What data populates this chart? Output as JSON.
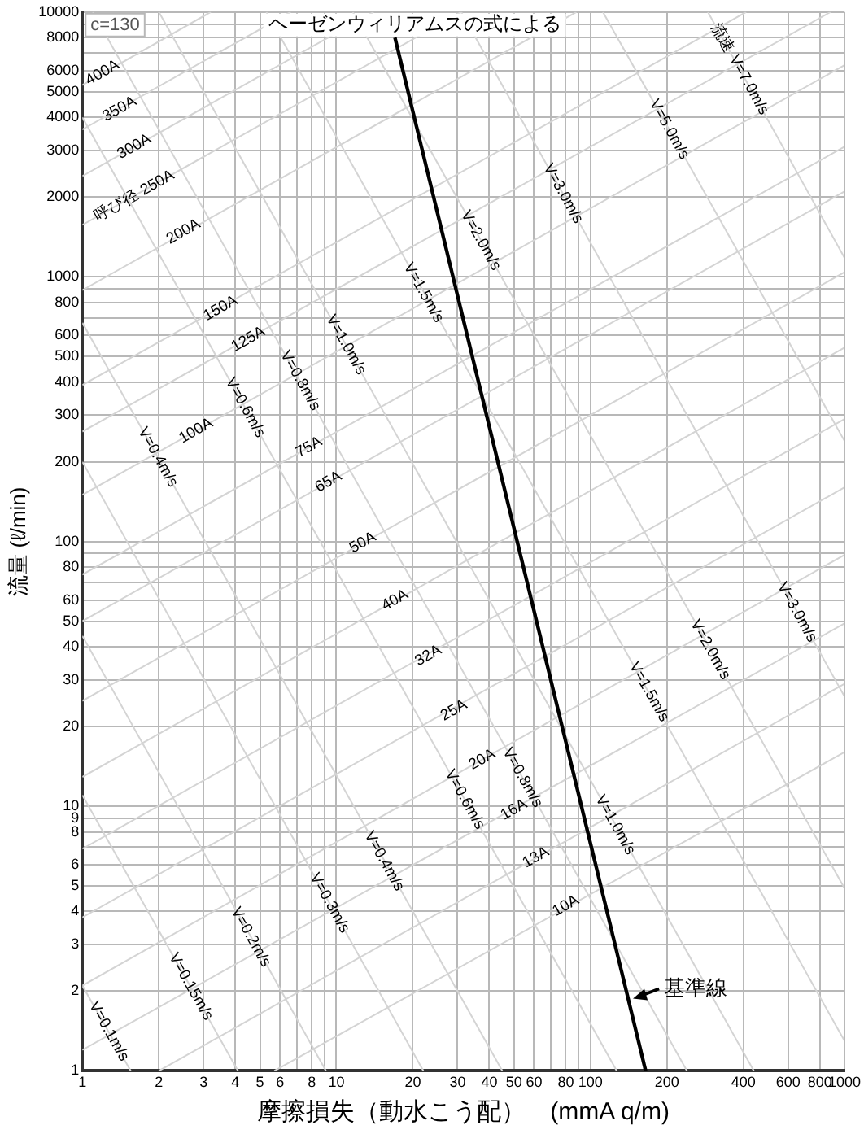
{
  "chart_data": {
    "type": "line",
    "title": "ヘーゼンウィリアムスの式による",
    "xlabel": "摩擦損失（動水こう配）　(mmA q/m)",
    "ylabel": "流量 (ℓ/min)",
    "log": "xy",
    "grid": true,
    "marker": "none",
    "xlim": [
      1,
      1000
    ],
    "ylim": [
      1,
      10000
    ],
    "xticks": [
      1,
      2,
      3,
      4,
      5,
      6,
      {
        "value": 7,
        "label": null
      },
      8,
      {
        "value": 9,
        "label": null
      },
      10,
      20,
      30,
      40,
      50,
      60,
      {
        "value": 70,
        "label": null
      },
      80,
      {
        "value": 90,
        "label": null
      },
      100,
      200,
      400,
      600,
      800,
      1000
    ],
    "yticks": [
      1,
      2,
      3,
      4,
      5,
      6,
      {
        "value": 7,
        "label": null
      },
      8,
      9,
      10,
      20,
      30,
      40,
      50,
      60,
      {
        "value": 70,
        "label": null
      },
      80,
      {
        "value": 90,
        "label": null
      },
      100,
      200,
      300,
      400,
      500,
      600,
      {
        "value": 700,
        "label": null
      },
      800,
      {
        "value": 900,
        "label": null
      },
      1000,
      2000,
      3000,
      4000,
      5000,
      6000,
      {
        "value": 7000,
        "label": null
      },
      8000,
      {
        "value": 9000,
        "label": null
      },
      10000
    ],
    "series": [
      {
        "name": "基準線",
        "color": "#000000",
        "x": [
          17,
          165
        ],
        "values": [
          8000,
          1
        ]
      },
      {
        "color": "#d4d4d4",
        "x": [
          1,
          3.2
        ],
        "values": [
          5300,
          10000
        ]
      },
      {
        "color": "#d4d4d4",
        "x": [
          1,
          6.6
        ],
        "values": [
          3600,
          10000
        ]
      },
      {
        "color": "#d4d4d4",
        "x": [
          1,
          14
        ],
        "values": [
          2400,
          10000
        ]
      },
      {
        "color": "#d4d4d4",
        "x": [
          1,
          31
        ],
        "values": [
          1570,
          10000
        ]
      },
      {
        "color": "#d4d4d4",
        "x": [
          1,
          88
        ],
        "values": [
          890,
          10000
        ]
      },
      {
        "color": "#d4d4d4",
        "x": [
          1,
          410
        ],
        "values": [
          390,
          10000
        ]
      },
      {
        "color": "#d4d4d4",
        "x": [
          1,
          880
        ],
        "values": [
          260,
          10000
        ]
      },
      {
        "color": "#d4d4d4",
        "x": [
          1,
          1000
        ],
        "values": [
          150,
          6300
        ]
      },
      {
        "color": "#d4d4d4",
        "x": [
          1,
          1000
        ],
        "values": [
          75,
          3100
        ]
      },
      {
        "color": "#d4d4d4",
        "x": [
          1,
          1000
        ],
        "values": [
          50,
          2100
        ]
      },
      {
        "color": "#d4d4d4",
        "x": [
          1,
          1000
        ],
        "values": [
          25,
          1040
        ]
      },
      {
        "color": "#d4d4d4",
        "x": [
          1,
          1000
        ],
        "values": [
          12.9,
          540
        ]
      },
      {
        "color": "#d4d4d4",
        "x": [
          1,
          1000
        ],
        "values": [
          6.9,
          290
        ]
      },
      {
        "color": "#d4d4d4",
        "x": [
          1,
          1000
        ],
        "values": [
          3.8,
          160
        ]
      },
      {
        "color": "#d4d4d4",
        "x": [
          1,
          1000
        ],
        "values": [
          2.1,
          89
        ]
      },
      {
        "color": "#d4d4d4",
        "x": [
          1,
          1000
        ],
        "values": [
          1.2,
          49
        ]
      },
      {
        "color": "#d4d4d4",
        "x": [
          2,
          1000
        ],
        "values": [
          1,
          29
        ]
      },
      {
        "color": "#d4d4d4",
        "x": [
          5.7,
          1000
        ],
        "values": [
          1,
          16
        ]
      },
      {
        "color": "#d4d4d4",
        "x": [
          1,
          1.55
        ],
        "values": [
          2.1,
          1
        ]
      },
      {
        "color": "#d4d4d4",
        "x": [
          1,
          4.1
        ],
        "values": [
          11,
          1
        ]
      },
      {
        "color": "#d4d4d4",
        "x": [
          1,
          9.1
        ],
        "values": [
          44,
          1
        ]
      },
      {
        "color": "#d4d4d4",
        "x": [
          1,
          22
        ],
        "values": [
          200,
          1
        ]
      },
      {
        "color": "#d4d4d4",
        "x": [
          1,
          45
        ],
        "values": [
          670,
          1
        ]
      },
      {
        "color": "#d4d4d4",
        "x": [
          1,
          127
        ],
        "values": [
          4000,
          1
        ]
      },
      {
        "color": "#d4d4d4",
        "x": [
          1.1,
          240
        ],
        "values": [
          10000,
          1
        ]
      },
      {
        "color": "#d4d4d4",
        "x": [
          2,
          440
        ],
        "values": [
          10000,
          1
        ]
      },
      {
        "color": "#d4d4d4",
        "x": [
          5.3,
          1000
        ],
        "values": [
          10000,
          1.3
        ]
      },
      {
        "color": "#d4d4d4",
        "x": [
          11.6,
          1000
        ],
        "values": [
          10000,
          4.9
        ]
      },
      {
        "color": "#d4d4d4",
        "x": [
          31,
          1000
        ],
        "values": [
          10000,
          26
        ]
      },
      {
        "color": "#d4d4d4",
        "x": [
          112,
          1000
        ],
        "values": [
          10000,
          240
        ]
      },
      {
        "color": "#d4d4d4",
        "x": [
          290,
          1000
        ],
        "values": [
          10000,
          1180
        ]
      }
    ],
    "annotations": [
      "c=130",
      {
        "text": "400A",
        "x": 1.2,
        "y": 5900
      },
      {
        "text": "350A",
        "x": 1.4,
        "y": 4300
      },
      {
        "text": "300A",
        "x": 1.6,
        "y": 3100
      },
      {
        "text": "呼び径 250A",
        "x": 1.6,
        "y": 2020
      },
      {
        "text": "200A",
        "x": 2.5,
        "y": 1480
      },
      {
        "text": "150A",
        "x": 3.5,
        "y": 760
      },
      {
        "text": "125A",
        "x": 4.5,
        "y": 580
      },
      {
        "text": "100A",
        "x": 2.8,
        "y": 262
      },
      {
        "text": "75A",
        "x": 7.8,
        "y": 227
      },
      {
        "text": "65A",
        "x": 9.3,
        "y": 168
      },
      {
        "text": "50A",
        "x": 12.7,
        "y": 99
      },
      {
        "text": "40A",
        "x": 17,
        "y": 60
      },
      {
        "text": "32A",
        "x": 23,
        "y": 37
      },
      {
        "text": "25A",
        "x": 29,
        "y": 23
      },
      {
        "text": "20A",
        "x": 37.5,
        "y": 15
      },
      {
        "text": "16A",
        "x": 50,
        "y": 9.7
      },
      {
        "text": "13A",
        "x": 61,
        "y": 6.4
      },
      {
        "text": "10A",
        "x": 80,
        "y": 4.2
      },
      {
        "text": "V=0.1m/s",
        "x": 1.27,
        "y": 1.41
      },
      {
        "text": "V=0.15m/s",
        "x": 2.67,
        "y": 2.08
      },
      {
        "text": "V=0.2m/s",
        "x": 4.6,
        "y": 3.2
      },
      {
        "text": "V=0.3m/s",
        "x": 9.4,
        "y": 4.3
      },
      {
        "text": "V=0.4m/s",
        "x": 15.4,
        "y": 6.2
      },
      {
        "text": "V=0.6m/s",
        "x": 32,
        "y": 10.6
      },
      {
        "text": "V=0.8m/s",
        "x": 54,
        "y": 12.8
      },
      {
        "text": "V=1.0m/s",
        "x": 125,
        "y": 8.5
      },
      {
        "text": "V=1.5m/s",
        "x": 170,
        "y": 27
      },
      {
        "text": "V=2.0m/s",
        "x": 296,
        "y": 39
      },
      {
        "text": "V=3.0m/s",
        "x": 650,
        "y": 54
      },
      {
        "text": "V=0.4m/s",
        "x": 1.98,
        "y": 208
      },
      {
        "text": "V=0.6m/s",
        "x": 4.37,
        "y": 320
      },
      {
        "text": "V=0.8m/s",
        "x": 7.2,
        "y": 405
      },
      {
        "text": "V=1.0m/s",
        "x": 10.9,
        "y": 553
      },
      {
        "text": "V=1.5m/s",
        "x": 22,
        "y": 870
      },
      {
        "text": "V=2.0m/s",
        "x": 37,
        "y": 1370
      },
      {
        "text": "V=3.0m/s",
        "x": 78,
        "y": 2060
      },
      {
        "text": "V=5.0m/s",
        "x": 204,
        "y": 3600
      },
      {
        "text": "V=7.0m/s",
        "x": 420,
        "y": 5300
      },
      {
        "text": "流速",
        "x": 330,
        "y": 8000
      }
    ]
  }
}
